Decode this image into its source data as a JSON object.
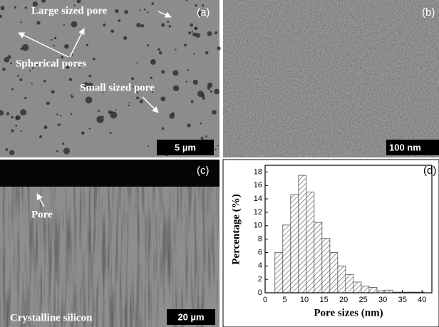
{
  "panels": {
    "a": {
      "label": "(a)",
      "large_pore": "Large sized pore",
      "spherical_pores": "Spherical pores",
      "small_pore": "Small sized pore",
      "scale_bar": "5 µm"
    },
    "b": {
      "label": "(b)",
      "scale_bar": "100 nm"
    },
    "c": {
      "label": "(c)",
      "pore": "Pore",
      "material": "Crystalline silicon",
      "scale_bar": "20 µm"
    },
    "d": {
      "label": "(d)"
    }
  },
  "chart_data": {
    "type": "histogram",
    "x_label": "Pore sizes (nm)",
    "y_label": "Percentage (%)",
    "bins": [
      2.5,
      4.5,
      6.5,
      8.5,
      10.5,
      12.5,
      14.5,
      16.5,
      18.5,
      20.5,
      22.5,
      24.5,
      26.5,
      28.5,
      30.5,
      32.5,
      34.5,
      36.5,
      38.5,
      40.5
    ],
    "values": [
      6,
      10.1,
      14.6,
      17.5,
      15,
      10.5,
      8.1,
      6,
      4,
      2.7,
      1.6,
      1,
      0.8,
      0.3,
      0.4,
      0.1,
      0.1,
      0.1,
      0.1
    ],
    "xlim": [
      0,
      42.5
    ],
    "ylim": [
      0,
      19
    ],
    "xticks": [
      0,
      5,
      10,
      15,
      20,
      25,
      30,
      35,
      40
    ],
    "yticks": [
      0,
      2,
      4,
      6,
      8,
      10,
      12,
      14,
      16,
      18
    ]
  }
}
